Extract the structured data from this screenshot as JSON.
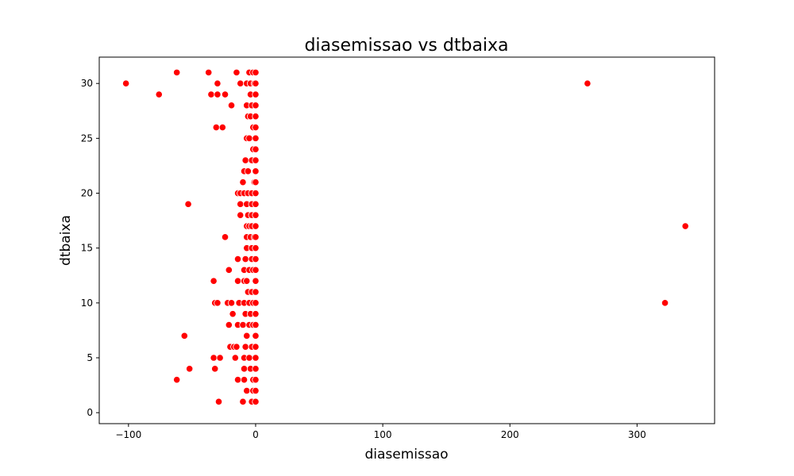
{
  "chart_data": {
    "type": "scatter",
    "title": "diasemissao vs dtbaixa",
    "xlabel": "diasemissao",
    "ylabel": "dtbaixa",
    "xlim": [
      -123,
      361
    ],
    "ylim": [
      -1,
      32.4
    ],
    "xticks": [
      -100,
      0,
      100,
      200,
      300
    ],
    "yticks": [
      0,
      5,
      10,
      15,
      20,
      25,
      30
    ],
    "grid": false,
    "legend": "none",
    "marker_color": "#ff0000",
    "marker_edge": "#ffffff",
    "points": [
      {
        "x": -102,
        "y": 30
      },
      {
        "x": -76,
        "y": 29
      },
      {
        "x": -62,
        "y": 31
      },
      {
        "x": -37,
        "y": 31
      },
      {
        "x": -15,
        "y": 31
      },
      {
        "x": -5,
        "y": 31
      },
      {
        "x": -2,
        "y": 31
      },
      {
        "x": 0,
        "y": 31
      },
      {
        "x": -30,
        "y": 30
      },
      {
        "x": -12,
        "y": 30
      },
      {
        "x": -7,
        "y": 30
      },
      {
        "x": -4,
        "y": 30
      },
      {
        "x": -1,
        "y": 30
      },
      {
        "x": 0,
        "y": 30
      },
      {
        "x": -35,
        "y": 29
      },
      {
        "x": -30,
        "y": 29
      },
      {
        "x": -24,
        "y": 29
      },
      {
        "x": -4,
        "y": 29
      },
      {
        "x": 0,
        "y": 29
      },
      {
        "x": -19,
        "y": 28
      },
      {
        "x": -7,
        "y": 28
      },
      {
        "x": -3,
        "y": 28
      },
      {
        "x": 0,
        "y": 28
      },
      {
        "x": -6,
        "y": 27
      },
      {
        "x": -4,
        "y": 27
      },
      {
        "x": 0,
        "y": 27
      },
      {
        "x": -31,
        "y": 26
      },
      {
        "x": -26,
        "y": 26
      },
      {
        "x": -2,
        "y": 26
      },
      {
        "x": 0,
        "y": 26
      },
      {
        "x": -7,
        "y": 25
      },
      {
        "x": -5,
        "y": 25
      },
      {
        "x": 0,
        "y": 25
      },
      {
        "x": -2,
        "y": 24
      },
      {
        "x": 0,
        "y": 24
      },
      {
        "x": -8,
        "y": 23
      },
      {
        "x": -3,
        "y": 23
      },
      {
        "x": 0,
        "y": 23
      },
      {
        "x": -9,
        "y": 22
      },
      {
        "x": -6,
        "y": 22
      },
      {
        "x": 0,
        "y": 22
      },
      {
        "x": -10,
        "y": 21
      },
      {
        "x": -1,
        "y": 21
      },
      {
        "x": 0,
        "y": 21
      },
      {
        "x": -14,
        "y": 20
      },
      {
        "x": -12,
        "y": 20
      },
      {
        "x": -9,
        "y": 20
      },
      {
        "x": -6,
        "y": 20
      },
      {
        "x": -3,
        "y": 20
      },
      {
        "x": 0,
        "y": 20
      },
      {
        "x": -53,
        "y": 19
      },
      {
        "x": -12,
        "y": 19
      },
      {
        "x": -7,
        "y": 19
      },
      {
        "x": -3,
        "y": 19
      },
      {
        "x": 0,
        "y": 19
      },
      {
        "x": -12,
        "y": 18
      },
      {
        "x": -6,
        "y": 18
      },
      {
        "x": -3,
        "y": 18
      },
      {
        "x": 0,
        "y": 18
      },
      {
        "x": -7,
        "y": 17
      },
      {
        "x": -5,
        "y": 17
      },
      {
        "x": -3,
        "y": 17
      },
      {
        "x": 0,
        "y": 17
      },
      {
        "x": 338,
        "y": 17
      },
      {
        "x": -24,
        "y": 16
      },
      {
        "x": -7,
        "y": 16
      },
      {
        "x": -4,
        "y": 16
      },
      {
        "x": -1,
        "y": 16
      },
      {
        "x": 0,
        "y": 16
      },
      {
        "x": -7,
        "y": 15
      },
      {
        "x": -3,
        "y": 15
      },
      {
        "x": 0,
        "y": 15
      },
      {
        "x": -14,
        "y": 14
      },
      {
        "x": -8,
        "y": 14
      },
      {
        "x": -3,
        "y": 14
      },
      {
        "x": 0,
        "y": 14
      },
      {
        "x": -21,
        "y": 13
      },
      {
        "x": -9,
        "y": 13
      },
      {
        "x": -5,
        "y": 13
      },
      {
        "x": -2,
        "y": 13
      },
      {
        "x": 0,
        "y": 13
      },
      {
        "x": -33,
        "y": 12
      },
      {
        "x": -14,
        "y": 12
      },
      {
        "x": -9,
        "y": 12
      },
      {
        "x": -7,
        "y": 12
      },
      {
        "x": 0,
        "y": 12
      },
      {
        "x": -6,
        "y": 11
      },
      {
        "x": -3,
        "y": 11
      },
      {
        "x": 0,
        "y": 11
      },
      {
        "x": -32,
        "y": 10
      },
      {
        "x": -30,
        "y": 10
      },
      {
        "x": -22,
        "y": 10
      },
      {
        "x": -19,
        "y": 10
      },
      {
        "x": -13,
        "y": 10
      },
      {
        "x": -9,
        "y": 10
      },
      {
        "x": -5,
        "y": 10
      },
      {
        "x": -2,
        "y": 10
      },
      {
        "x": 0,
        "y": 10
      },
      {
        "x": 322,
        "y": 10
      },
      {
        "x": -18,
        "y": 9
      },
      {
        "x": -8,
        "y": 9
      },
      {
        "x": -4,
        "y": 9
      },
      {
        "x": 0,
        "y": 9
      },
      {
        "x": -21,
        "y": 8
      },
      {
        "x": -14,
        "y": 8
      },
      {
        "x": -10,
        "y": 8
      },
      {
        "x": -5,
        "y": 8
      },
      {
        "x": -2,
        "y": 8
      },
      {
        "x": 0,
        "y": 8
      },
      {
        "x": -56,
        "y": 7
      },
      {
        "x": -7,
        "y": 7
      },
      {
        "x": 0,
        "y": 7
      },
      {
        "x": -20,
        "y": 6
      },
      {
        "x": -17,
        "y": 6
      },
      {
        "x": -15,
        "y": 6
      },
      {
        "x": -8,
        "y": 6
      },
      {
        "x": -3,
        "y": 6
      },
      {
        "x": 0,
        "y": 6
      },
      {
        "x": -33,
        "y": 5
      },
      {
        "x": -28,
        "y": 5
      },
      {
        "x": -16,
        "y": 5
      },
      {
        "x": -9,
        "y": 5
      },
      {
        "x": -5,
        "y": 5
      },
      {
        "x": 0,
        "y": 5
      },
      {
        "x": -52,
        "y": 4
      },
      {
        "x": -32,
        "y": 4
      },
      {
        "x": -9,
        "y": 4
      },
      {
        "x": -4,
        "y": 4
      },
      {
        "x": 0,
        "y": 4
      },
      {
        "x": -62,
        "y": 3
      },
      {
        "x": -14,
        "y": 3
      },
      {
        "x": -9,
        "y": 3
      },
      {
        "x": -2,
        "y": 3
      },
      {
        "x": 0,
        "y": 3
      },
      {
        "x": -7,
        "y": 2
      },
      {
        "x": -2,
        "y": 2
      },
      {
        "x": 0,
        "y": 2
      },
      {
        "x": -29,
        "y": 1
      },
      {
        "x": -10,
        "y": 1
      },
      {
        "x": -3,
        "y": 1
      },
      {
        "x": 0,
        "y": 1
      },
      {
        "x": 261,
        "y": 30
      }
    ]
  }
}
